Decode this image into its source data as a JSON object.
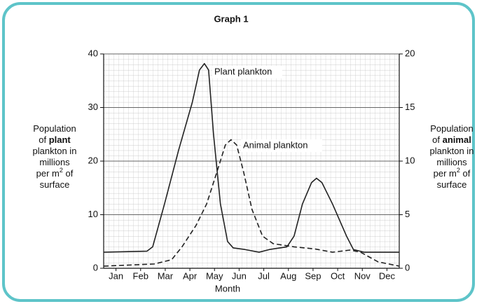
{
  "chart_data": {
    "type": "line",
    "title": "Graph 1",
    "xlabel": "Month",
    "xlim": [
      0,
      12
    ],
    "xticks": [
      {
        "value": 0.5,
        "label": "Jan"
      },
      {
        "value": 1.5,
        "label": "Feb"
      },
      {
        "value": 2.5,
        "label": "Mar"
      },
      {
        "value": 3.5,
        "label": "Apr"
      },
      {
        "value": 4.5,
        "label": "May"
      },
      {
        "value": 5.5,
        "label": "Jun"
      },
      {
        "value": 6.5,
        "label": "Jul"
      },
      {
        "value": 7.5,
        "label": "Aug"
      },
      {
        "value": 8.5,
        "label": "Sep"
      },
      {
        "value": 9.5,
        "label": "Oct"
      },
      {
        "value": 10.5,
        "label": "Nov"
      },
      {
        "value": 11.5,
        "label": "Dec"
      }
    ],
    "ylim": [
      0,
      40
    ],
    "yticks": [
      0,
      10,
      20,
      30,
      40
    ],
    "y2lim": [
      0,
      20
    ],
    "y2ticks": [
      0,
      5,
      10,
      15,
      20
    ],
    "ylabel": [
      [
        {
          "text": "Population"
        }
      ],
      [
        {
          "text": "of "
        },
        {
          "text": "plant",
          "bold": true
        }
      ],
      [
        {
          "text": "plankton in"
        }
      ],
      [
        {
          "text": "millions"
        }
      ],
      [
        {
          "text": "per m"
        },
        {
          "text": "2",
          "sup": true
        },
        {
          "text": " of"
        }
      ],
      [
        {
          "text": "surface"
        }
      ]
    ],
    "y2label": [
      [
        {
          "text": "Population"
        }
      ],
      [
        {
          "text": "of "
        },
        {
          "text": "animal",
          "bold": true
        }
      ],
      [
        {
          "text": "plankton in"
        }
      ],
      [
        {
          "text": "millions"
        }
      ],
      [
        {
          "text": "per m"
        },
        {
          "text": "2",
          "sup": true
        },
        {
          "text": " of"
        }
      ],
      [
        {
          "text": "surface"
        }
      ]
    ],
    "grid": true,
    "series": [
      {
        "name": "Plant plankton",
        "color": "#222222",
        "dash": false,
        "x": [
          0,
          1.76,
          1.99,
          2.47,
          3.04,
          3.6,
          3.89,
          4.09,
          4.26,
          4.46,
          4.74,
          5.03,
          5.26,
          5.74,
          6.31,
          6.73,
          7.44,
          7.73,
          8.07,
          8.44,
          8.64,
          8.86,
          9.29,
          9.86,
          10.14,
          10.57,
          12
        ],
        "values": [
          3,
          3.2,
          4,
          12,
          22,
          31,
          37,
          38.2,
          37,
          25,
          12,
          5,
          3.8,
          3.5,
          3,
          3.5,
          4,
          6,
          12,
          16,
          16.8,
          16,
          12,
          6,
          3.5,
          3,
          3
        ]
      },
      {
        "name": "Animal plankton",
        "color": "#222222",
        "dash": true,
        "axis": "y2",
        "x": [
          0,
          2.05,
          2.76,
          3.18,
          3.75,
          4.18,
          4.6,
          4.94,
          5.17,
          5.4,
          5.68,
          6.02,
          6.45,
          6.88,
          7.73,
          8.58,
          9.29,
          10,
          10.43,
          11.14,
          12
        ],
        "values": [
          0.2,
          0.4,
          0.8,
          2,
          4,
          6,
          9,
          11.5,
          12,
          11.5,
          9,
          5.5,
          3,
          2.3,
          2,
          1.8,
          1.5,
          1.7,
          1.5,
          0.6,
          0.2
        ]
      }
    ]
  }
}
